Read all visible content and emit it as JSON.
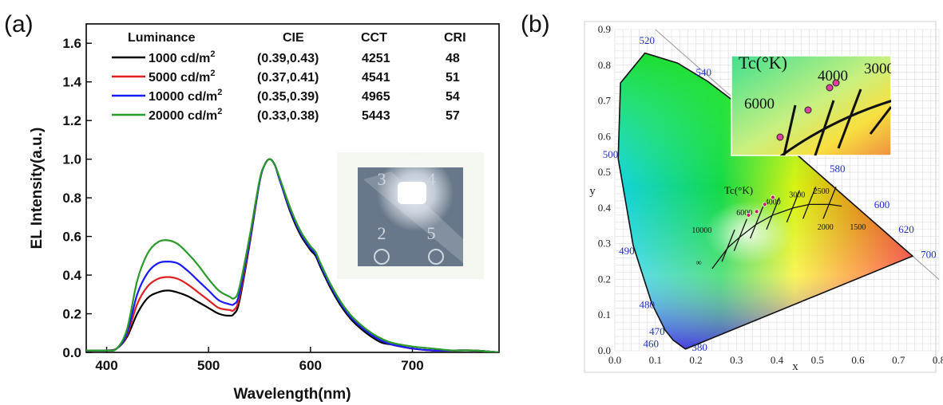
{
  "panels": {
    "a": "(a)",
    "b": "(b)"
  },
  "chart_data": [
    {
      "type": "line",
      "xlabel": "Wavelength(nm)",
      "ylabel": "EL Intensity(a.u.)",
      "xlim": [
        380,
        785
      ],
      "ylim": [
        0,
        1.7
      ],
      "xticks": [
        "400",
        "500",
        "600",
        "700"
      ],
      "yticks": [
        "0.0",
        "0.2",
        "0.4",
        "0.6",
        "0.8",
        "1.0",
        "1.2",
        "1.4",
        "1.6"
      ],
      "legend_headers": {
        "luminance": "Luminance",
        "cie": "CIE",
        "cct": "CCT",
        "cri": "CRI"
      },
      "x": [
        380,
        400,
        410,
        420,
        430,
        440,
        450,
        460,
        470,
        480,
        490,
        500,
        510,
        520,
        525,
        530,
        540,
        550,
        555,
        560,
        565,
        570,
        580,
        590,
        600,
        605,
        610,
        620,
        630,
        640,
        650,
        660,
        670,
        680,
        700,
        720,
        740,
        760,
        785
      ],
      "series": [
        {
          "name": "1000 cd/m2",
          "lum": "1000 cd/m",
          "sup": "2",
          "cie": "(0.39,0.43)",
          "cct": "4251",
          "cri": "48",
          "color": "#000000",
          "values": [
            0.01,
            0.01,
            0.02,
            0.08,
            0.2,
            0.28,
            0.31,
            0.32,
            0.31,
            0.29,
            0.26,
            0.23,
            0.2,
            0.19,
            0.2,
            0.26,
            0.55,
            0.88,
            0.97,
            1.0,
            0.97,
            0.89,
            0.73,
            0.61,
            0.53,
            0.5,
            0.44,
            0.33,
            0.24,
            0.17,
            0.12,
            0.08,
            0.05,
            0.04,
            0.02,
            0.01,
            0.01,
            0.01,
            0.0
          ]
        },
        {
          "name": "5000 cd/m2",
          "lum": "5000 cd/m",
          "sup": "2",
          "cie": "(0.37,0.41)",
          "cct": "4541",
          "cri": "51",
          "color": "#e02020",
          "values": [
            0.01,
            0.01,
            0.02,
            0.09,
            0.25,
            0.34,
            0.38,
            0.39,
            0.38,
            0.35,
            0.31,
            0.27,
            0.23,
            0.22,
            0.22,
            0.28,
            0.56,
            0.88,
            0.97,
            1.0,
            0.97,
            0.89,
            0.74,
            0.62,
            0.54,
            0.51,
            0.45,
            0.34,
            0.25,
            0.18,
            0.13,
            0.09,
            0.06,
            0.04,
            0.02,
            0.01,
            0.01,
            0.01,
            0.0
          ]
        },
        {
          "name": "10000 cd/m2",
          "lum": "10000 cd/m",
          "sup": "2",
          "cie": "(0.35,0.39)",
          "cct": "4965",
          "cri": "54",
          "color": "#1a1aff",
          "values": [
            0.01,
            0.01,
            0.02,
            0.1,
            0.3,
            0.41,
            0.46,
            0.47,
            0.46,
            0.42,
            0.37,
            0.32,
            0.27,
            0.25,
            0.25,
            0.3,
            0.57,
            0.88,
            0.97,
            1.0,
            0.97,
            0.89,
            0.74,
            0.62,
            0.54,
            0.51,
            0.45,
            0.34,
            0.25,
            0.18,
            0.13,
            0.09,
            0.06,
            0.04,
            0.02,
            0.01,
            0.01,
            0.01,
            0.0
          ]
        },
        {
          "name": "20000 cd/m2",
          "lum": "20000 cd/m",
          "sup": "2",
          "cie": "(0.33,0.38)",
          "cct": "5443",
          "cri": "57",
          "color": "#2a9a2a",
          "values": [
            0.01,
            0.01,
            0.02,
            0.12,
            0.37,
            0.51,
            0.57,
            0.58,
            0.56,
            0.51,
            0.45,
            0.38,
            0.32,
            0.29,
            0.28,
            0.33,
            0.59,
            0.89,
            0.97,
            1.0,
            0.97,
            0.9,
            0.75,
            0.63,
            0.55,
            0.52,
            0.46,
            0.35,
            0.26,
            0.19,
            0.14,
            0.1,
            0.07,
            0.05,
            0.03,
            0.02,
            0.01,
            0.01,
            0.0
          ]
        }
      ],
      "inset_photo": {
        "device_labels": [
          "3",
          "4",
          "2",
          "5"
        ]
      }
    },
    {
      "type": "scatter",
      "subtype": "CIE 1931 chromaticity diagram",
      "xlabel": "x",
      "ylabel": "y",
      "xlim": [
        0.0,
        0.8
      ],
      "ylim": [
        0.0,
        0.9
      ],
      "grid": true,
      "xticks": [
        "0.0",
        "0.1",
        "0.2",
        "0.3",
        "0.4",
        "0.5",
        "0.6",
        "0.7",
        "0.8"
      ],
      "yticks": [
        "0.0",
        "0.1",
        "0.2",
        "0.3",
        "0.4",
        "0.5",
        "0.6",
        "0.7",
        "0.8",
        "0.9"
      ],
      "wavelength_labels": [
        "380",
        "460",
        "470",
        "480",
        "490",
        "500",
        "520",
        "540",
        "580",
        "600",
        "620",
        "700"
      ],
      "planckian_title": "Tc(°K)",
      "cct_labels": [
        "10000",
        "6000",
        "4000",
        "3000",
        "2500",
        "2000",
        "1500",
        "∞"
      ],
      "points": [
        {
          "x": 0.39,
          "y": 0.43
        },
        {
          "x": 0.37,
          "y": 0.41
        },
        {
          "x": 0.35,
          "y": 0.39
        },
        {
          "x": 0.33,
          "y": 0.38
        }
      ],
      "inset_labels": [
        "Tc(°K)",
        "6000",
        "4000",
        "3000"
      ]
    }
  ]
}
